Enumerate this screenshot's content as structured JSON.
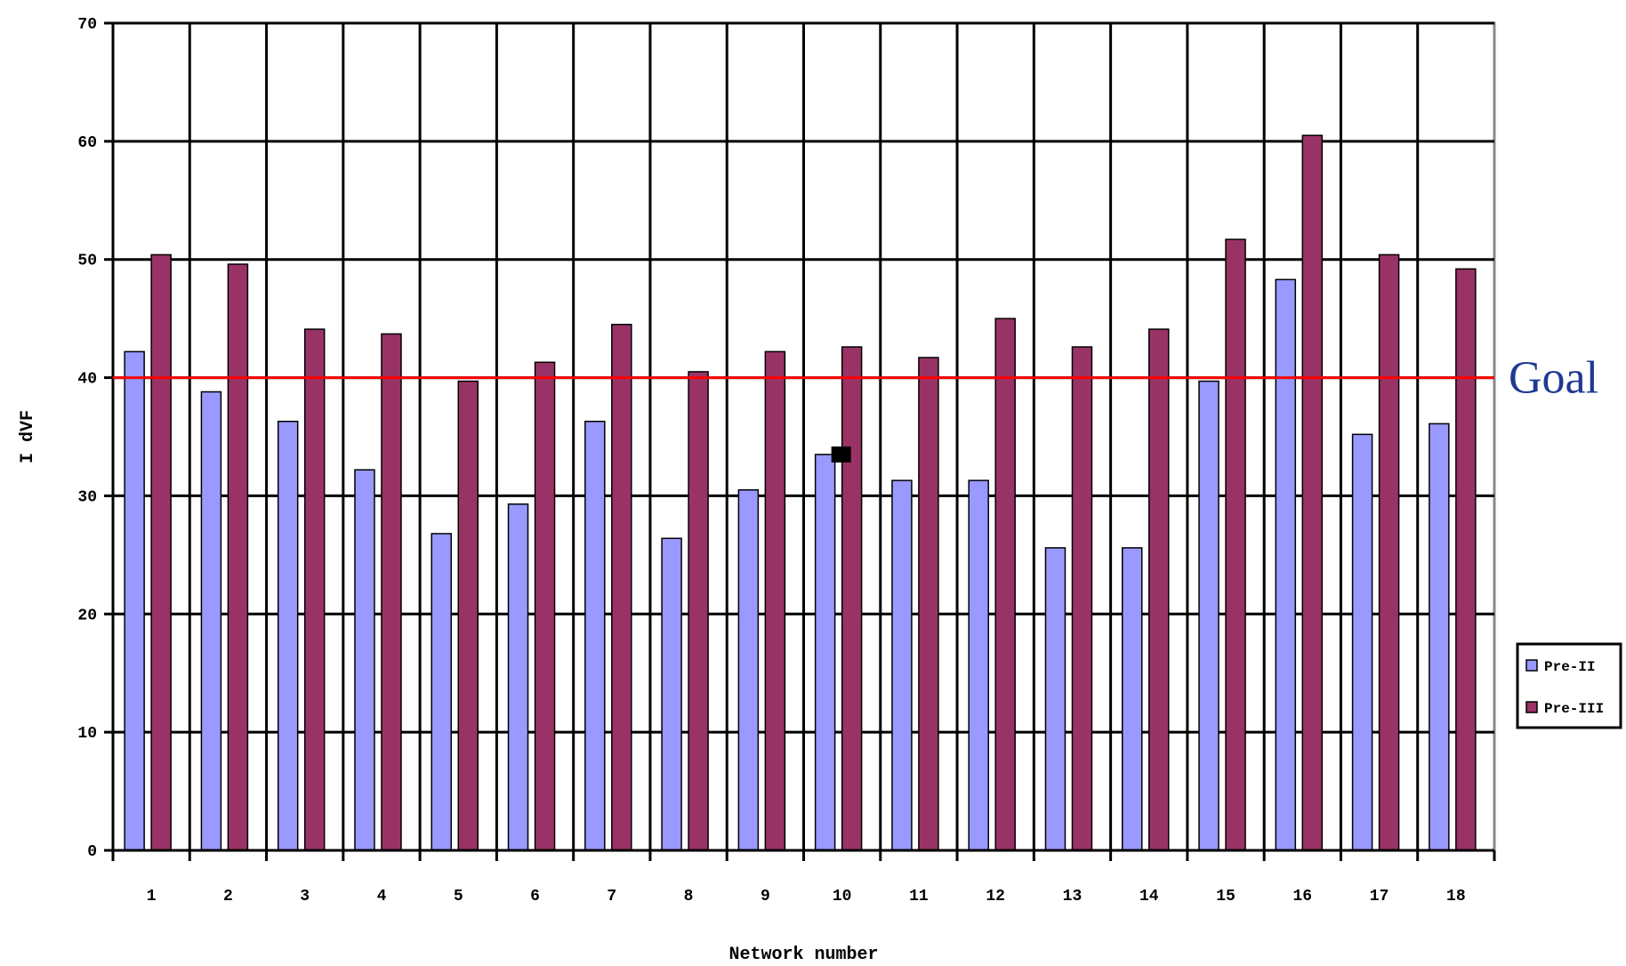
{
  "chart_data": {
    "type": "bar",
    "title": "",
    "xlabel": "Network number",
    "ylabel": "I dVF",
    "ylim": [
      0,
      70
    ],
    "yticks": [
      0,
      10,
      20,
      30,
      40,
      50,
      60,
      70
    ],
    "grid": true,
    "legend_position": "right",
    "categories": [
      "1",
      "2",
      "3",
      "4",
      "5",
      "6",
      "7",
      "8",
      "9",
      "10",
      "11",
      "12",
      "13",
      "14",
      "15",
      "16",
      "17",
      "18"
    ],
    "series": [
      {
        "name": "Pre-II",
        "color": "#9999ff",
        "values": [
          42.2,
          38.8,
          36.3,
          32.2,
          26.8,
          29.3,
          36.3,
          26.4,
          30.5,
          33.5,
          31.3,
          31.3,
          25.6,
          25.6,
          39.7,
          48.3,
          35.2,
          36.1
        ]
      },
      {
        "name": "Pre-III",
        "color": "#993366",
        "values": [
          50.4,
          49.6,
          44.1,
          43.7,
          39.7,
          41.3,
          44.5,
          40.5,
          42.2,
          42.6,
          41.7,
          45.0,
          42.6,
          44.1,
          51.7,
          60.5,
          50.4,
          49.2
        ]
      }
    ],
    "reference_line": {
      "label": "Goal",
      "value": 40,
      "color": "#ff0000"
    }
  }
}
